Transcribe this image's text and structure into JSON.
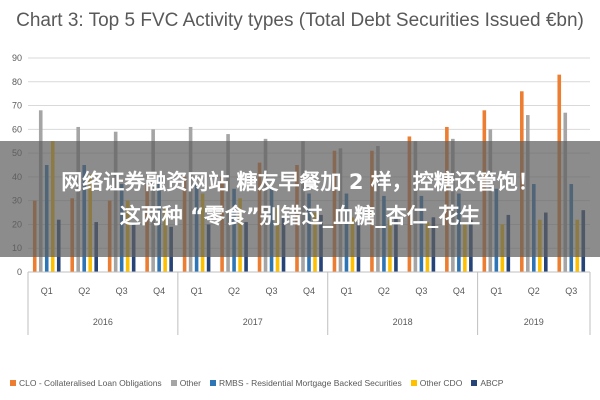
{
  "chart_data": {
    "type": "bar",
    "title": "Chart 3: Top 5 FVC Activity types (Total Debt Securities Issued €bn)",
    "ylim": [
      0,
      90
    ],
    "yticks": [
      0,
      10,
      20,
      30,
      40,
      50,
      60,
      70,
      80,
      90
    ],
    "grid": true,
    "legend_position": "bottom",
    "categories": [
      "Q1",
      "Q2",
      "Q3",
      "Q4",
      "Q1",
      "Q2",
      "Q3",
      "Q4",
      "Q1",
      "Q2",
      "Q3",
      "Q4",
      "Q1",
      "Q2",
      "Q3"
    ],
    "groups": [
      {
        "label": "2016",
        "count": 4
      },
      {
        "label": "2017",
        "count": 4
      },
      {
        "label": "2018",
        "count": 4
      },
      {
        "label": "2019",
        "count": 3
      }
    ],
    "series": [
      {
        "name": "CLO - Collateralised Loan Obligations",
        "color": "#ed7d31",
        "values": [
          30,
          31,
          30,
          37,
          40,
          40,
          46,
          45,
          51,
          51,
          57,
          61,
          68,
          76,
          83
        ]
      },
      {
        "name": "Other",
        "color": "#a5a5a5",
        "values": [
          68,
          61,
          59,
          60,
          61,
          58,
          56,
          55,
          52,
          53,
          55,
          56,
          60,
          66,
          67
        ]
      },
      {
        "name": "RMBS - Residential Mortgage Backed Securities",
        "color": "#2e75b6",
        "values": [
          45,
          45,
          37,
          40,
          37,
          35,
          35,
          33,
          33,
          32,
          32,
          33,
          35,
          37,
          37
        ]
      },
      {
        "name": "Other CDO",
        "color": "#ffc000",
        "values": [
          55,
          41,
          30,
          27,
          33,
          31,
          27,
          25,
          23,
          22,
          21,
          20,
          20,
          22,
          22
        ]
      },
      {
        "name": "ABCP",
        "color": "#264478",
        "values": [
          22,
          21,
          20,
          19,
          20,
          21,
          23,
          24,
          21,
          23,
          23,
          22,
          24,
          25,
          26
        ]
      }
    ]
  },
  "overlay": {
    "line1": "网络证券融资网站 糖友早餐加 2 样，控糖还管饱！",
    "line2": "这两种 “零食”别错过_血糖_杏仁_花生"
  }
}
